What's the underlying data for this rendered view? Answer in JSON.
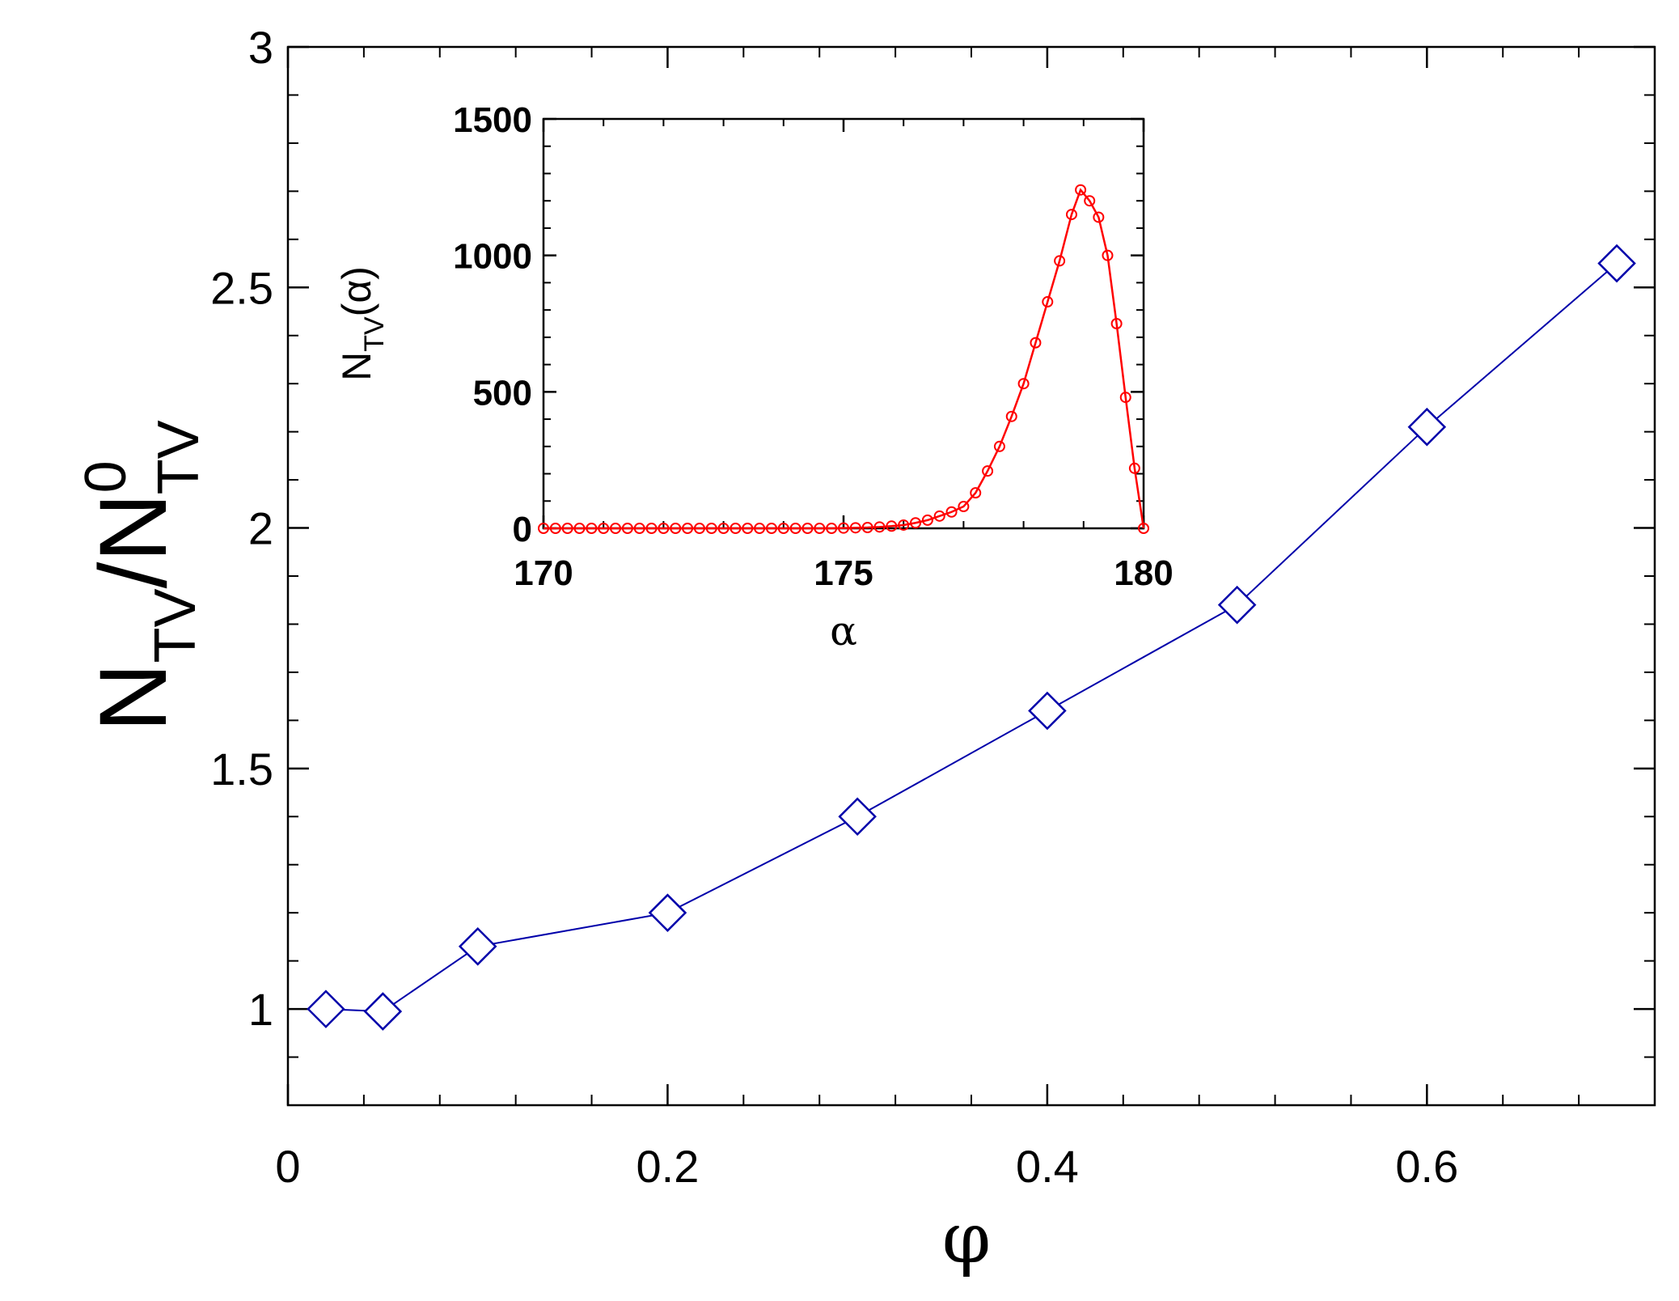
{
  "chart_data": [
    {
      "type": "line",
      "role": "main",
      "xlabel": "φ",
      "ylabel": {
        "base": "N",
        "sub": "TV",
        "sep": "/",
        "base2": "N",
        "sup2": "0",
        "sub2": "TV"
      },
      "xlim": [
        0,
        0.72
      ],
      "ylim": [
        0.8,
        3.0
      ],
      "xticks": [
        0,
        0.2,
        0.4,
        0.6
      ],
      "xtick_labels": [
        "0",
        "0.2",
        "0.4",
        "0.6"
      ],
      "yticks": [
        1,
        1.5,
        2,
        2.5,
        3
      ],
      "ytick_labels": [
        "1",
        "1.5",
        "2",
        "2.5",
        "3"
      ],
      "marker": "diamond",
      "color": "#0000aa",
      "series": [
        {
          "x": [
            0.02,
            0.05,
            0.1,
            0.2,
            0.3,
            0.4,
            0.5,
            0.6,
            0.7
          ],
          "y": [
            1.0,
            0.995,
            1.13,
            1.2,
            1.4,
            1.62,
            1.84,
            2.21,
            2.55
          ]
        }
      ]
    },
    {
      "type": "line",
      "role": "inset",
      "xlabel": "α",
      "ylabel": {
        "base": "N",
        "sub": "TV",
        "rest": "(α)"
      },
      "xlim": [
        170,
        180
      ],
      "ylim": [
        0,
        1500
      ],
      "xticks": [
        170,
        175,
        180
      ],
      "xtick_labels": [
        "170",
        "175",
        "180"
      ],
      "yticks": [
        0,
        500,
        1000,
        1500
      ],
      "ytick_labels": [
        "0",
        "500",
        "1000",
        "1500"
      ],
      "marker": "circle",
      "color": "#ff0000",
      "series": [
        {
          "x": [
            170.0,
            170.2,
            170.4,
            170.6,
            170.8,
            171.0,
            171.2,
            171.4,
            171.6,
            171.8,
            172.0,
            172.2,
            172.4,
            172.6,
            172.8,
            173.0,
            173.2,
            173.4,
            173.6,
            173.8,
            174.0,
            174.2,
            174.4,
            174.6,
            174.8,
            175.0,
            175.2,
            175.4,
            175.6,
            175.8,
            176.0,
            176.2,
            176.4,
            176.6,
            176.8,
            177.0,
            177.2,
            177.4,
            177.6,
            177.8,
            178.0,
            178.2,
            178.4,
            178.6,
            178.8,
            178.95,
            179.1,
            179.25,
            179.4,
            179.55,
            179.7,
            179.85,
            180.0
          ],
          "y": [
            0,
            0,
            0,
            0,
            0,
            0,
            0,
            0,
            0,
            0,
            0,
            0,
            0,
            0,
            0,
            0,
            0,
            0,
            0,
            0,
            0,
            0,
            0,
            0,
            0,
            1,
            2,
            3,
            5,
            8,
            12,
            20,
            30,
            45,
            60,
            80,
            130,
            210,
            300,
            410,
            530,
            680,
            830,
            980,
            1150,
            1240,
            1200,
            1140,
            1000,
            750,
            480,
            220,
            0
          ]
        }
      ]
    }
  ]
}
